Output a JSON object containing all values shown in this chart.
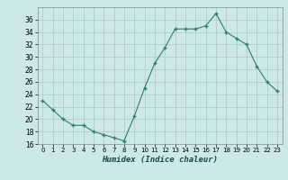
{
  "x": [
    0,
    1,
    2,
    3,
    4,
    5,
    6,
    7,
    8,
    9,
    10,
    11,
    12,
    13,
    14,
    15,
    16,
    17,
    18,
    19,
    20,
    21,
    22,
    23
  ],
  "y": [
    23,
    21.5,
    20,
    19,
    19,
    18,
    17.5,
    17,
    16.5,
    20.5,
    25,
    29,
    31.5,
    34.5,
    34.5,
    34.5,
    35,
    37,
    34,
    33,
    32,
    28.5,
    26,
    24.5
  ],
  "xlabel": "Humidex (Indice chaleur)",
  "ylim": [
    16,
    38
  ],
  "xlim": [
    -0.5,
    23.5
  ],
  "yticks": [
    16,
    18,
    20,
    22,
    24,
    26,
    28,
    30,
    32,
    34,
    36
  ],
  "xticks": [
    0,
    1,
    2,
    3,
    4,
    5,
    6,
    7,
    8,
    9,
    10,
    11,
    12,
    13,
    14,
    15,
    16,
    17,
    18,
    19,
    20,
    21,
    22,
    23
  ],
  "line_color": "#2e7d6e",
  "marker_color": "#2e7d6e",
  "bg_color": "#cce8e8",
  "grid_color": "#aec8c8",
  "fig_bg": "#cce8e8"
}
